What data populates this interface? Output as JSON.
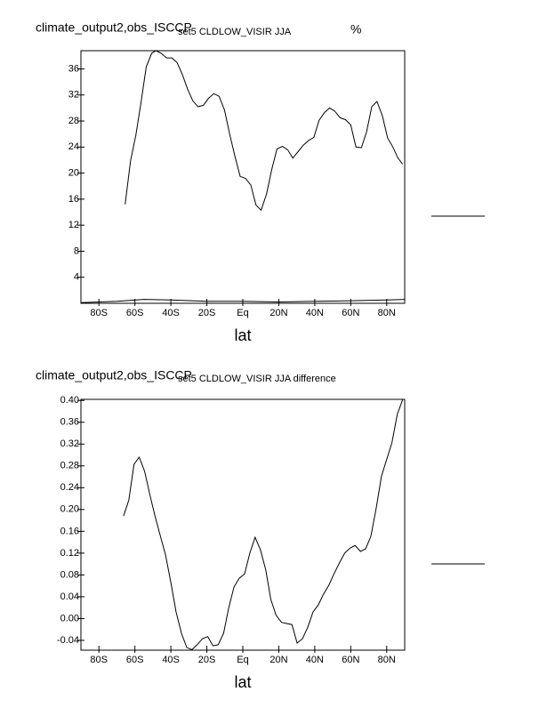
{
  "chart_data": [
    {
      "type": "line",
      "title": "climate_output2,obs_ISCCP",
      "subtitle": "set5 CLDLOW_VISIR JJA",
      "units": "%",
      "xlabel": "lat",
      "xlim": [
        -90,
        90
      ],
      "xticks": [
        {
          "value": -80,
          "label": "80S"
        },
        {
          "value": -60,
          "label": "60S"
        },
        {
          "value": -40,
          "label": "40S"
        },
        {
          "value": -20,
          "label": "20S"
        },
        {
          "value": 0,
          "label": "Eq"
        },
        {
          "value": 20,
          "label": "20N"
        },
        {
          "value": 40,
          "label": "40N"
        },
        {
          "value": 60,
          "label": "60N"
        },
        {
          "value": 80,
          "label": "80N"
        }
      ],
      "ylim": [
        0,
        38.8
      ],
      "yticks": [
        4,
        8,
        12,
        16,
        20,
        24,
        28,
        32,
        36
      ],
      "series": [
        {
          "color": "#000000",
          "x": [
            -65.4,
            -62.4,
            -59.5,
            -56.6,
            -53.7,
            -50.7,
            -48.3,
            -45.4,
            -42.4,
            -39.5,
            -36.6,
            -33.7,
            -30.7,
            -27.8,
            -24.9,
            -22.0,
            -19.0,
            -16.1,
            -13.2,
            -10.2,
            -7.3,
            -4.4,
            -1.5,
            1.5,
            4.4,
            7.3,
            10.2,
            13.2,
            16.1,
            19.0,
            22.0,
            24.9,
            27.8,
            30.7,
            33.7,
            36.6,
            39.5,
            42.4,
            45.4,
            48.3,
            51.2,
            54.1,
            57.1,
            60.0,
            62.9,
            65.9,
            68.8,
            71.7,
            74.6,
            77.6,
            80.5,
            83.4,
            86.3,
            88.8
          ],
          "values": [
            15.2,
            21.9,
            25.8,
            30.8,
            36.3,
            38.4,
            38.8,
            38.4,
            37.7,
            37.7,
            37.0,
            35.2,
            32.9,
            31.1,
            30.2,
            30.4,
            31.5,
            32.2,
            31.8,
            29.7,
            26.0,
            22.6,
            19.5,
            19.2,
            18.2,
            15.1,
            14.3,
            16.8,
            20.6,
            23.7,
            24.1,
            23.6,
            22.3,
            23.3,
            24.3,
            25.0,
            25.5,
            28.1,
            29.3,
            30.0,
            29.5,
            28.5,
            28.2,
            27.4,
            24.0,
            23.9,
            26.3,
            30.2,
            31.0,
            28.8,
            25.4,
            24.0,
            22.3,
            21.4
          ]
        },
        {
          "color": "#000000",
          "x": [
            -90,
            -70,
            -55,
            -40,
            -20,
            0,
            20,
            40,
            60,
            80,
            90
          ],
          "values": [
            0.1,
            0.3,
            0.6,
            0.5,
            0.3,
            0.3,
            0.2,
            0.3,
            0.4,
            0.5,
            0.6
          ]
        }
      ]
    },
    {
      "type": "line",
      "title": "climate_output2,obs_ISCCP",
      "subtitle": "set5 CLDLOW_VISIR JJA difference",
      "xlabel": "lat",
      "xlim": [
        -90,
        90
      ],
      "xticks": [
        {
          "value": -80,
          "label": "80S"
        },
        {
          "value": -60,
          "label": "60S"
        },
        {
          "value": -40,
          "label": "40S"
        },
        {
          "value": -20,
          "label": "20S"
        },
        {
          "value": 0,
          "label": "Eq"
        },
        {
          "value": 20,
          "label": "20N"
        },
        {
          "value": 40,
          "label": "40N"
        },
        {
          "value": 60,
          "label": "60N"
        },
        {
          "value": 80,
          "label": "80N"
        }
      ],
      "ylim": [
        -0.058,
        0.402
      ],
      "yticks": [
        {
          "value": 0.4,
          "label": "0.40"
        },
        0.36,
        0.32,
        0.28,
        0.24,
        {
          "value": 0.2,
          "label": "0.20"
        },
        0.16,
        0.12,
        0.08,
        0.04,
        {
          "value": 0,
          "label": "0.00"
        },
        -0.04
      ],
      "series": [
        {
          "color": "#000000",
          "x": [
            -66.3,
            -63.4,
            -60.5,
            -57.6,
            -54.6,
            -51.7,
            -48.8,
            -45.9,
            -42.9,
            -40.0,
            -37.1,
            -34.1,
            -31.2,
            -28.3,
            -25.4,
            -22.4,
            -19.5,
            -16.6,
            -13.7,
            -10.7,
            -7.8,
            -4.9,
            -2.0,
            1.0,
            3.9,
            6.8,
            9.8,
            12.7,
            15.6,
            18.5,
            21.5,
            24.4,
            27.3,
            30.2,
            33.2,
            36.1,
            39.0,
            42.0,
            44.9,
            47.8,
            50.7,
            53.7,
            56.6,
            59.5,
            62.4,
            65.4,
            68.3,
            71.2,
            74.1,
            77.1,
            80.0,
            82.9,
            85.9,
            88.8
          ],
          "values": [
            0.188,
            0.217,
            0.283,
            0.296,
            0.27,
            0.227,
            0.188,
            0.152,
            0.116,
            0.066,
            0.012,
            -0.027,
            -0.053,
            -0.057,
            -0.048,
            -0.037,
            -0.033,
            -0.05,
            -0.048,
            -0.027,
            0.02,
            0.058,
            0.074,
            0.082,
            0.12,
            0.149,
            0.126,
            0.09,
            0.035,
            0.006,
            -0.007,
            -0.009,
            -0.011,
            -0.045,
            -0.037,
            -0.016,
            0.012,
            0.025,
            0.045,
            0.061,
            0.082,
            0.102,
            0.12,
            0.129,
            0.134,
            0.123,
            0.128,
            0.151,
            0.201,
            0.261,
            0.292,
            0.322,
            0.375,
            0.401
          ]
        }
      ]
    }
  ]
}
